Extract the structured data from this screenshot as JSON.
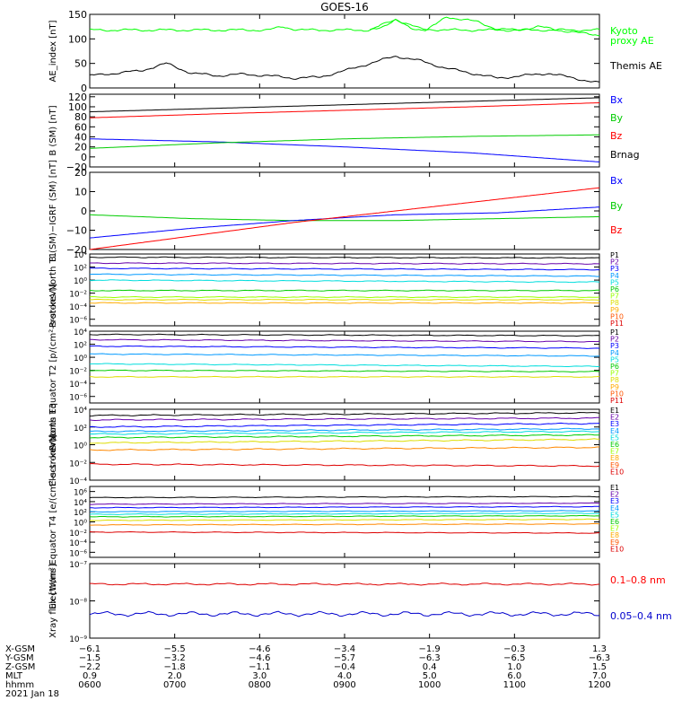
{
  "title": "GOES-16",
  "chart_data": [
    {
      "type": "line",
      "ylabel": "AE_index [nT]",
      "ylim": [
        0,
        150
      ],
      "yticks": [
        0,
        50,
        100,
        150
      ],
      "tick_labels": [
        "0",
        "50",
        "100",
        "150"
      ],
      "series": [
        {
          "name": "Kyoto proxy AE",
          "color": "#00ff00",
          "x": [
            0,
            0.05,
            0.1,
            0.15,
            0.2,
            0.25,
            0.3,
            0.35,
            0.38,
            0.4,
            0.42,
            0.45,
            0.5,
            0.55,
            0.6,
            0.65,
            0.7,
            0.75,
            0.8,
            0.85,
            0.9,
            0.95,
            1
          ],
          "values": [
            118,
            118,
            118,
            118,
            118,
            118,
            118,
            118,
            125,
            120,
            118,
            118,
            118,
            118,
            140,
            120,
            118,
            118,
            118,
            118,
            118,
            118,
            118
          ]
        },
        {
          "name": "Kyoto proxy AE",
          "color": "#00ff00",
          "x": [
            0.55,
            0.58,
            0.6,
            0.63,
            0.66,
            0.68,
            0.7,
            0.73,
            0.76,
            0.8,
            0.84,
            0.88,
            0.92,
            0.96,
            1
          ],
          "values": [
            118,
            128,
            138,
            122,
            118,
            130,
            145,
            140,
            135,
            120,
            118,
            125,
            118,
            112,
            108
          ]
        },
        {
          "name": "Themis AE",
          "color": "#000000",
          "x": [
            0,
            0.05,
            0.1,
            0.15,
            0.2,
            0.25,
            0.3,
            0.35,
            0.4,
            0.45,
            0.5,
            0.55,
            0.6,
            0.65,
            0.7,
            0.75,
            0.8,
            0.85,
            0.9,
            0.95,
            1
          ],
          "values": [
            25,
            30,
            35,
            50,
            30,
            25,
            28,
            25,
            20,
            22,
            35,
            50,
            65,
            55,
            40,
            30,
            20,
            25,
            30,
            20,
            10
          ]
        }
      ],
      "legend": [
        {
          "text": "Kyoto",
          "color": "#00ff00"
        },
        {
          "text": "proxy AE",
          "color": "#00ff00"
        },
        {
          "text": "Themis AE",
          "color": "#000000"
        }
      ]
    },
    {
      "type": "line",
      "ylabel": "B (SM) [nT]",
      "ylim": [
        -20,
        125
      ],
      "yticks": [
        -20,
        0,
        20,
        40,
        60,
        80,
        100,
        120
      ],
      "tick_labels": [
        "−20",
        "0",
        "20",
        "40",
        "60",
        "80",
        "100",
        "120"
      ],
      "series": [
        {
          "name": "Brnag",
          "color": "#000000",
          "x": [
            0,
            0.25,
            0.5,
            0.75,
            1
          ],
          "values": [
            90,
            97,
            104,
            111,
            118
          ]
        },
        {
          "name": "Bz",
          "color": "#ff0000",
          "x": [
            0,
            0.25,
            0.5,
            0.75,
            1
          ],
          "values": [
            78,
            86,
            93,
            100,
            108
          ]
        },
        {
          "name": "Bx",
          "color": "#0000ff",
          "x": [
            0,
            0.25,
            0.5,
            0.75,
            1
          ],
          "values": [
            36,
            30,
            20,
            8,
            -10
          ]
        },
        {
          "name": "By",
          "color": "#00cc00",
          "x": [
            0,
            0.25,
            0.5,
            0.75,
            1
          ],
          "values": [
            17,
            28,
            36,
            41,
            44
          ]
        }
      ],
      "legend": [
        {
          "text": "Bx",
          "color": "#0000ff"
        },
        {
          "text": "By",
          "color": "#00cc00"
        },
        {
          "text": "Bz",
          "color": "#ff0000"
        },
        {
          "text": "Brnag",
          "color": "#000000"
        }
      ]
    },
    {
      "type": "line",
      "ylabel": "B (SM)−IGRF (SM) [nT]",
      "ylim": [
        -20,
        20
      ],
      "yticks": [
        -20,
        -10,
        0,
        10,
        20
      ],
      "tick_labels": [
        "−20",
        "−10",
        "0",
        "10",
        "20"
      ],
      "series": [
        {
          "name": "By",
          "color": "#00cc00",
          "x": [
            0,
            0.2,
            0.4,
            0.6,
            0.8,
            1
          ],
          "values": [
            -2,
            -4,
            -5,
            -5,
            -4,
            -3
          ]
        },
        {
          "name": "Bx",
          "color": "#0000ff",
          "x": [
            0,
            0.2,
            0.4,
            0.6,
            0.8,
            1
          ],
          "values": [
            -14,
            -9,
            -5,
            -2,
            -1,
            2
          ]
        },
        {
          "name": "Bz",
          "color": "#ff0000",
          "x": [
            0,
            0.2,
            0.4,
            0.6,
            0.8,
            1
          ],
          "values": [
            -20,
            -13,
            -6,
            0,
            6,
            12
          ]
        }
      ],
      "legend": [
        {
          "text": "Bx",
          "color": "#0000ff"
        },
        {
          "text": "By",
          "color": "#00cc00"
        },
        {
          "text": "Bz",
          "color": "#ff0000"
        }
      ]
    },
    {
      "type": "line",
      "ylabel": "Protons North T1",
      "log": true,
      "ylim": [
        -7,
        4
      ],
      "yticks": [
        4,
        2,
        0,
        -2,
        -4,
        -6
      ],
      "tick_labels": [
        "10⁴",
        "10²",
        "10⁰",
        "10⁻²",
        "10⁻⁴",
        "10⁻⁶"
      ],
      "series": [
        {
          "name": "P1",
          "color": "#000000",
          "values": [
            3.5,
            3.4
          ]
        },
        {
          "name": "P2",
          "color": "#6600aa",
          "values": [
            2.6,
            2.5
          ]
        },
        {
          "name": "P3",
          "color": "#0000ff",
          "values": [
            1.8,
            1.6
          ]
        },
        {
          "name": "P4",
          "color": "#0099ff",
          "values": [
            0.9,
            0.6
          ]
        },
        {
          "name": "P5",
          "color": "#00dddd",
          "values": [
            0,
            -0.3
          ]
        },
        {
          "name": "P6",
          "color": "#00cc00",
          "values": [
            -1.6,
            -1.6
          ]
        },
        {
          "name": "P7",
          "color": "#99ff00",
          "values": [
            -2.6,
            -2.6
          ]
        },
        {
          "name": "P8",
          "color": "#dddd00",
          "values": [
            -3.0,
            -3.0
          ]
        },
        {
          "name": "P9",
          "color": "#ffaa00",
          "values": [
            -3.5,
            -3.5
          ]
        }
      ],
      "legend": [
        {
          "text": "P1",
          "color": "#000000"
        },
        {
          "text": "P2",
          "color": "#6600aa"
        },
        {
          "text": "P3",
          "color": "#0000ff"
        },
        {
          "text": "P4",
          "color": "#0099ff"
        },
        {
          "text": "P5",
          "color": "#00dddd"
        },
        {
          "text": "P6",
          "color": "#00cc00"
        },
        {
          "text": "P7",
          "color": "#99ff00"
        },
        {
          "text": "P8",
          "color": "#dddd00"
        },
        {
          "text": "P9",
          "color": "#ffaa00"
        },
        {
          "text": "P10",
          "color": "#ff5500"
        },
        {
          "text": "P11",
          "color": "#dd0000"
        }
      ]
    },
    {
      "type": "line",
      "ylabel": "Protons Equator T2 [p/(cm²-s-sr-keV)]",
      "log": true,
      "ylim": [
        -7,
        4
      ],
      "yticks": [
        4,
        2,
        0,
        -2,
        -4,
        -6
      ],
      "tick_labels": [
        "10⁴",
        "10²",
        "10⁰",
        "10⁻²",
        "10⁻⁴",
        "10⁻⁶"
      ],
      "series": [
        {
          "name": "P1",
          "color": "#000000",
          "values": [
            3.5,
            3.3
          ]
        },
        {
          "name": "P2",
          "color": "#6600aa",
          "values": [
            2.7,
            2.4
          ]
        },
        {
          "name": "P3",
          "color": "#0000ff",
          "values": [
            1.7,
            1.4
          ]
        },
        {
          "name": "P4",
          "color": "#0099ff",
          "values": [
            0.5,
            0.2
          ]
        },
        {
          "name": "P5",
          "color": "#00dddd",
          "values": [
            -1.0,
            -1.4
          ]
        },
        {
          "name": "P6",
          "color": "#00cc00",
          "values": [
            -2.0,
            -2.2
          ]
        },
        {
          "name": "P7",
          "color": "#dddd00",
          "values": [
            -3.0,
            -3.0
          ]
        }
      ],
      "legend": [
        {
          "text": "P1",
          "color": "#000000"
        },
        {
          "text": "P2",
          "color": "#6600aa"
        },
        {
          "text": "P3",
          "color": "#0000ff"
        },
        {
          "text": "P4",
          "color": "#0099ff"
        },
        {
          "text": "P5",
          "color": "#00dddd"
        },
        {
          "text": "P6",
          "color": "#00cc00"
        },
        {
          "text": "P7",
          "color": "#99ff00"
        },
        {
          "text": "P8",
          "color": "#dddd00"
        },
        {
          "text": "P9",
          "color": "#ffaa00"
        },
        {
          "text": "P10",
          "color": "#ff5500"
        },
        {
          "text": "P11",
          "color": "#dd0000"
        }
      ]
    },
    {
      "type": "line",
      "ylabel": "Electrons North T3",
      "log": true,
      "ylim": [
        -4,
        4
      ],
      "yticks": [
        4,
        2,
        0,
        -2,
        -4
      ],
      "tick_labels": [
        "10⁴",
        "10²",
        "10⁰",
        "10⁻²",
        "10⁻⁴"
      ],
      "series": [
        {
          "name": "E1",
          "color": "#000000",
          "values": [
            3.3,
            3.6
          ]
        },
        {
          "name": "E2",
          "color": "#6600aa",
          "values": [
            2.8,
            3.0
          ]
        },
        {
          "name": "E3",
          "color": "#0000ff",
          "values": [
            2.0,
            2.4
          ]
        },
        {
          "name": "E4",
          "color": "#0099ff",
          "values": [
            1.5,
            1.8
          ]
        },
        {
          "name": "E5",
          "color": "#00dddd",
          "values": [
            1.2,
            1.5
          ]
        },
        {
          "name": "E6",
          "color": "#00cc00",
          "values": [
            0.8,
            1.1
          ]
        },
        {
          "name": "E7",
          "color": "#dddd00",
          "values": [
            0.2,
            0.6
          ]
        },
        {
          "name": "E8",
          "color": "#ff8800",
          "values": [
            -0.6,
            -0.3
          ]
        },
        {
          "name": "E9",
          "color": "#dd0000",
          "values": [
            -2.2,
            -2.4
          ]
        }
      ],
      "legend": [
        {
          "text": "E1",
          "color": "#000000"
        },
        {
          "text": "E2",
          "color": "#6600aa"
        },
        {
          "text": "E3",
          "color": "#0000ff"
        },
        {
          "text": "E4",
          "color": "#0099ff"
        },
        {
          "text": "E5",
          "color": "#00dddd"
        },
        {
          "text": "E6",
          "color": "#00cc00"
        },
        {
          "text": "E7",
          "color": "#99ff00"
        },
        {
          "text": "E8",
          "color": "#ffaa00"
        },
        {
          "text": "E9",
          "color": "#ff5500"
        },
        {
          "text": "E10",
          "color": "#dd0000"
        }
      ]
    },
    {
      "type": "line",
      "ylabel": "Electrons Equator T4 [e/(cm²-s-sr-keV)]",
      "log": true,
      "ylim": [
        -7,
        7
      ],
      "yticks": [
        6,
        4,
        2,
        0,
        -2,
        -4,
        -6
      ],
      "tick_labels": [
        "10⁶",
        "10⁴",
        "10²",
        "10⁰",
        "10⁻²",
        "10⁻⁴",
        "10⁻⁶"
      ],
      "series": [
        {
          "name": "E1",
          "color": "#000000",
          "values": [
            4.8,
            5.0
          ]
        },
        {
          "name": "E2",
          "color": "#6600aa",
          "values": [
            3.5,
            3.7
          ]
        },
        {
          "name": "E3",
          "color": "#0000ff",
          "values": [
            2.8,
            3.0
          ]
        },
        {
          "name": "E4",
          "color": "#0099ff",
          "values": [
            2.0,
            2.2
          ]
        },
        {
          "name": "E5",
          "color": "#00dddd",
          "values": [
            1.5,
            1.7
          ]
        },
        {
          "name": "E6",
          "color": "#00cc00",
          "values": [
            1.0,
            1.2
          ]
        },
        {
          "name": "E7",
          "color": "#dddd00",
          "values": [
            0.3,
            0.5
          ]
        },
        {
          "name": "E8",
          "color": "#ff8800",
          "values": [
            -0.6,
            -0.4
          ]
        },
        {
          "name": "E9",
          "color": "#dd0000",
          "values": [
            -2.0,
            -2.2
          ]
        }
      ],
      "legend": [
        {
          "text": "E1",
          "color": "#000000"
        },
        {
          "text": "E2",
          "color": "#6600aa"
        },
        {
          "text": "E3",
          "color": "#0000ff"
        },
        {
          "text": "E4",
          "color": "#0099ff"
        },
        {
          "text": "E5",
          "color": "#00dddd"
        },
        {
          "text": "E6",
          "color": "#00cc00"
        },
        {
          "text": "E7",
          "color": "#99ff00"
        },
        {
          "text": "E8",
          "color": "#ffaa00"
        },
        {
          "text": "E9",
          "color": "#ff5500"
        },
        {
          "text": "E10",
          "color": "#dd0000"
        }
      ]
    },
    {
      "type": "line",
      "ylabel": "Xray flux [W/m²]",
      "log": true,
      "ylim": [
        -9,
        -7
      ],
      "yticks": [
        -7,
        -8,
        -9
      ],
      "tick_labels": [
        "10⁻⁷",
        "10⁻⁸",
        "10⁻⁹"
      ],
      "series": [
        {
          "name": "0.1–0.8 nm",
          "color": "#dd0000",
          "values": [
            -7.55,
            -7.55
          ]
        },
        {
          "name": "0.05–0.4 nm",
          "color": "#0000cc",
          "values": [
            -8.35,
            -8.35
          ]
        }
      ],
      "legend": [
        {
          "text": "0.1–0.8 nm",
          "color": "#ff0000"
        },
        {
          "text": "0.05–0.4 nm",
          "color": "#0000cc"
        }
      ]
    }
  ],
  "x_axis": {
    "row_labels": [
      "X-GSM",
      "Y-GSM",
      "Z-GSM",
      "MLT",
      "hhmm"
    ],
    "columns": [
      {
        "values": [
          "−6.1",
          "−1.5",
          "−2.2",
          "0.9",
          "0600"
        ]
      },
      {
        "values": [
          "−5.5",
          "−3.2",
          "−1.8",
          "2.0",
          "0700"
        ]
      },
      {
        "values": [
          "−4.6",
          "−4.6",
          "−1.1",
          "3.0",
          "0800"
        ]
      },
      {
        "values": [
          "−3.4",
          "−5.7",
          "−0.4",
          "4.0",
          "0900"
        ]
      },
      {
        "values": [
          "−1.9",
          "−6.3",
          "0.4",
          "5.0",
          "1000"
        ]
      },
      {
        "values": [
          "−0.3",
          "−6.5",
          "1.0",
          "6.0",
          "1100"
        ]
      },
      {
        "values": [
          "1.3",
          "−6.3",
          "1.5",
          "7.0",
          "1200"
        ]
      }
    ],
    "date": "2021 Jan 18"
  }
}
